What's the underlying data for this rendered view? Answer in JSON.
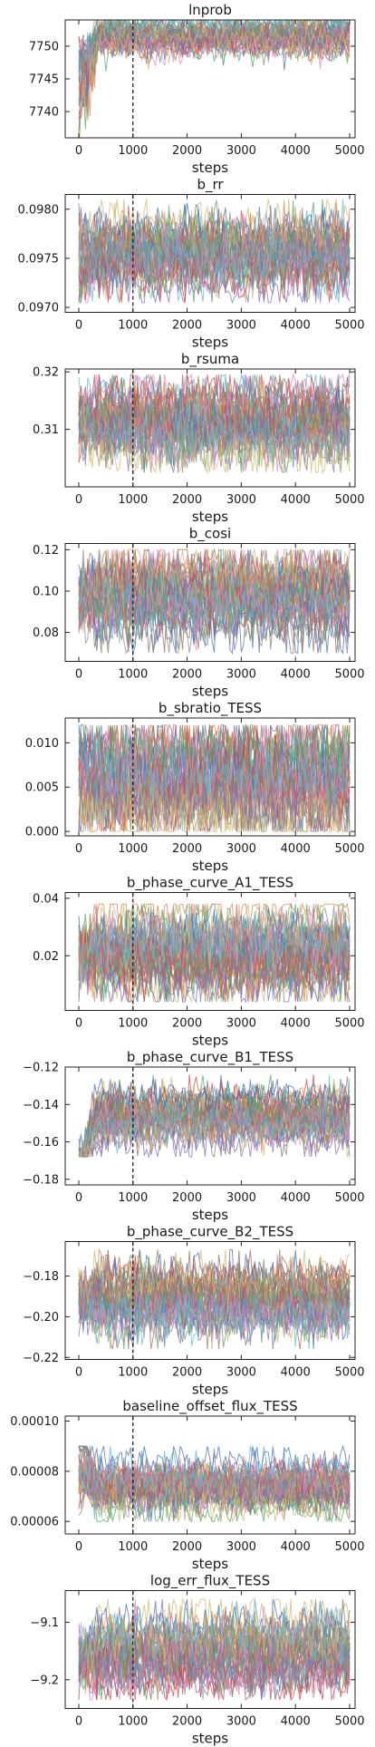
{
  "chart_data": [
    {
      "type": "line",
      "title": "lnprob",
      "xlabel": "steps",
      "ylabel": "",
      "xlim": [
        -250,
        5100
      ],
      "ylim": [
        7736,
        7754
      ],
      "xticks": [
        0,
        1000,
        2000,
        3000,
        4000,
        5000
      ],
      "xtick_labels": [
        "0",
        "1000",
        "2000",
        "3000",
        "4000",
        "5000"
      ],
      "yticks": [
        7740,
        7745,
        7750
      ],
      "ytick_labels": [
        "7740",
        "7745",
        "7750"
      ],
      "vline": 1000,
      "n_walkers": 40,
      "n_steps": 5000,
      "walker_trend": {
        "start": [
          7738,
          7751
        ],
        "band": [
          7740,
          7754
        ],
        "center": 7751.5,
        "spread": 1.2
      }
    },
    {
      "type": "line",
      "title": "b_rr",
      "xlabel": "steps",
      "ylabel": "",
      "xlim": [
        -250,
        5100
      ],
      "ylim": [
        0.09695,
        0.09815
      ],
      "xticks": [
        0,
        1000,
        2000,
        3000,
        4000,
        5000
      ],
      "xtick_labels": [
        "0",
        "1000",
        "2000",
        "3000",
        "4000",
        "5000"
      ],
      "yticks": [
        0.097,
        0.0975,
        0.098
      ],
      "ytick_labels": [
        "0.0970",
        "0.0975",
        "0.0980"
      ],
      "vline": 1000,
      "n_walkers": 40,
      "n_steps": 5000,
      "walker_trend": {
        "start": [
          0.0971,
          0.0979
        ],
        "band": [
          0.09705,
          0.0981
        ],
        "center": 0.09755,
        "spread": 0.00016
      }
    },
    {
      "type": "line",
      "title": "b_rsuma",
      "xlabel": "steps",
      "ylabel": "",
      "xlim": [
        -250,
        5100
      ],
      "ylim": [
        0.3,
        0.3205
      ],
      "xticks": [
        0,
        1000,
        2000,
        3000,
        4000,
        5000
      ],
      "xtick_labels": [
        "0",
        "1000",
        "2000",
        "3000",
        "4000",
        "5000"
      ],
      "yticks": [
        0.31,
        0.32
      ],
      "ytick_labels": [
        "0.31",
        "0.32"
      ],
      "vline": 1000,
      "n_walkers": 40,
      "n_steps": 5000,
      "walker_trend": {
        "start": [
          0.308,
          0.314
        ],
        "band": [
          0.3025,
          0.3195
        ],
        "center": 0.311,
        "spread": 0.0028
      }
    },
    {
      "type": "line",
      "title": "b_cosi",
      "xlabel": "steps",
      "ylabel": "",
      "xlim": [
        -250,
        5100
      ],
      "ylim": [
        0.066,
        0.123
      ],
      "xticks": [
        0,
        1000,
        2000,
        3000,
        4000,
        5000
      ],
      "xtick_labels": [
        "0",
        "1000",
        "2000",
        "3000",
        "4000",
        "5000"
      ],
      "yticks": [
        0.08,
        0.1,
        0.12
      ],
      "ytick_labels": [
        "0.08",
        "0.10",
        "0.12"
      ],
      "vline": 1000,
      "n_walkers": 40,
      "n_steps": 5000,
      "walker_trend": {
        "start": [
          0.095,
          0.102
        ],
        "band": [
          0.07,
          0.12
        ],
        "center": 0.096,
        "spread": 0.008
      }
    },
    {
      "type": "line",
      "title": "b_sbratio_TESS",
      "xlabel": "steps",
      "ylabel": "",
      "xlim": [
        -250,
        5100
      ],
      "ylim": [
        -0.0005,
        0.0128
      ],
      "xticks": [
        0,
        1000,
        2000,
        3000,
        4000,
        5000
      ],
      "xtick_labels": [
        "0",
        "1000",
        "2000",
        "3000",
        "4000",
        "5000"
      ],
      "yticks": [
        0.0,
        0.005,
        0.01
      ],
      "ytick_labels": [
        "0.000",
        "0.005",
        "0.010"
      ],
      "vline": 1000,
      "n_walkers": 40,
      "n_steps": 5000,
      "walker_trend": {
        "start": [
          0.001,
          0.011
        ],
        "band": [
          0.0,
          0.012
        ],
        "center": 0.0055,
        "spread": 0.0025
      }
    },
    {
      "type": "line",
      "title": "b_phase_curve_A1_TESS",
      "xlabel": "steps",
      "ylabel": "",
      "xlim": [
        -250,
        5100
      ],
      "ylim": [
        0.001,
        0.042
      ],
      "xticks": [
        0,
        1000,
        2000,
        3000,
        4000,
        5000
      ],
      "xtick_labels": [
        "0",
        "1000",
        "2000",
        "3000",
        "4000",
        "5000"
      ],
      "yticks": [
        0.02,
        0.04
      ],
      "ytick_labels": [
        "0.02",
        "0.04"
      ],
      "vline": 1000,
      "n_walkers": 40,
      "n_steps": 5000,
      "walker_trend": {
        "start": [
          0.016,
          0.026
        ],
        "band": [
          0.004,
          0.038
        ],
        "center": 0.021,
        "spread": 0.006
      }
    },
    {
      "type": "line",
      "title": "b_phase_curve_B1_TESS",
      "xlabel": "steps",
      "ylabel": "",
      "xlim": [
        -250,
        5100
      ],
      "ylim": [
        -0.183,
        -0.12
      ],
      "xticks": [
        0,
        1000,
        2000,
        3000,
        4000,
        5000
      ],
      "xtick_labels": [
        "0",
        "1000",
        "2000",
        "3000",
        "4000",
        "5000"
      ],
      "yticks": [
        -0.18,
        -0.16,
        -0.14,
        -0.12
      ],
      "ytick_labels": [
        "−0.18",
        "−0.16",
        "−0.14",
        "−0.12"
      ],
      "vline": 1000,
      "n_walkers": 40,
      "n_steps": 5000,
      "walker_trend": {
        "start": [
          -0.176,
          -0.172
        ],
        "band": [
          -0.168,
          -0.124
        ],
        "center": -0.146,
        "spread": 0.006
      }
    },
    {
      "type": "line",
      "title": "b_phase_curve_B2_TESS",
      "xlabel": "steps",
      "ylabel": "",
      "xlim": [
        -250,
        5100
      ],
      "ylim": [
        -0.221,
        -0.163
      ],
      "xticks": [
        0,
        1000,
        2000,
        3000,
        4000,
        5000
      ],
      "xtick_labels": [
        "0",
        "1000",
        "2000",
        "3000",
        "4000",
        "5000"
      ],
      "yticks": [
        -0.22,
        -0.2,
        -0.18
      ],
      "ytick_labels": [
        "−0.22",
        "−0.20",
        "−0.18"
      ],
      "vline": 1000,
      "n_walkers": 40,
      "n_steps": 5000,
      "walker_trend": {
        "start": [
          -0.196,
          -0.186
        ],
        "band": [
          -0.216,
          -0.167
        ],
        "center": -0.192,
        "spread": 0.007
      }
    },
    {
      "type": "line",
      "title": "baseline_offset_flux_TESS",
      "xlabel": "steps",
      "ylabel": "",
      "xlim": [
        -250,
        5100
      ],
      "ylim": [
        5.5e-05,
        0.000102
      ],
      "xticks": [
        0,
        1000,
        2000,
        3000,
        4000,
        5000
      ],
      "xtick_labels": [
        "0",
        "1000",
        "2000",
        "3000",
        "4000",
        "5000"
      ],
      "yticks": [
        6e-05,
        8e-05,
        0.0001
      ],
      "ytick_labels": [
        "0.00006",
        "0.00008",
        "0.00010"
      ],
      "vline": 1000,
      "n_walkers": 40,
      "n_steps": 5000,
      "walker_trend": {
        "start": [
          7e-05,
          0.0001
        ],
        "band": [
          6e-05,
          9e-05
        ],
        "center": 7.5e-05,
        "spread": 4.5e-06
      }
    },
    {
      "type": "line",
      "title": "log_err_flux_TESS",
      "xlabel": "steps",
      "ylabel": "",
      "xlim": [
        -250,
        5100
      ],
      "ylim": [
        -9.25,
        -9.045
      ],
      "xticks": [
        0,
        1000,
        2000,
        3000,
        4000,
        5000
      ],
      "xtick_labels": [
        "0",
        "1000",
        "2000",
        "3000",
        "4000",
        "5000"
      ],
      "yticks": [
        -9.2,
        -9.1
      ],
      "ytick_labels": [
        "−9.2",
        "−9.1"
      ],
      "vline": 1000,
      "n_walkers": 40,
      "n_steps": 5000,
      "walker_trend": {
        "start": [
          -9.17,
          -9.15
        ],
        "band": [
          -9.235,
          -9.06
        ],
        "center": -9.16,
        "spread": 0.025
      }
    }
  ],
  "colors": [
    "#4c72b0",
    "#dd8452",
    "#55a868",
    "#c44e52",
    "#8172b3",
    "#937860",
    "#da8bc3",
    "#8c8c8c",
    "#ccb974",
    "#64b5cd"
  ]
}
